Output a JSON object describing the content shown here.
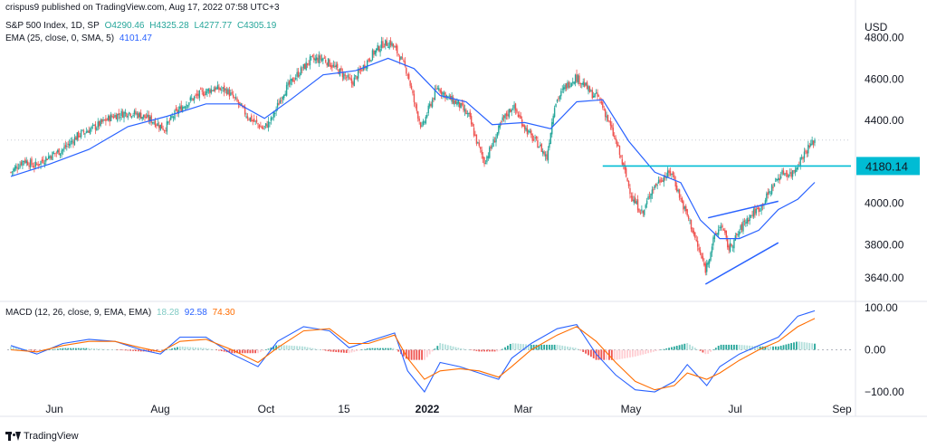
{
  "header": {
    "publisher": "crispus9 published on TradingView.com, Aug 17, 2022 07:58 UTC+3"
  },
  "legend": {
    "symbol": "S&P 500 Index, 1D, SP",
    "ohlc": {
      "o": "O4290.46",
      "h": "H4325.28",
      "l": "L4277.77",
      "c": "C4305.19"
    },
    "ema_label": "EMA (25, close, 0, SMA, 5)",
    "ema_value": "4101.47",
    "macd_label": "MACD (12, 26, close, 9, EMA, EMA)",
    "macd_hist": "18.28",
    "macd_line": "92.58",
    "macd_signal": "74.30"
  },
  "branding": {
    "text": "TradingView"
  },
  "colors": {
    "up": "#26a69a",
    "down": "#ef5350",
    "ema": "#2962ff",
    "macd": "#2962ff",
    "signal": "#ff6d00",
    "hline": "#00bcd4",
    "trend": "#2962ff",
    "last_price": "#d6d6d6"
  },
  "chart_data": {
    "type": "candlestick",
    "currency": "USD",
    "ylim": [
      3540,
      4920
    ],
    "yticks": [
      "4800.00",
      "4600.00",
      "4400.00",
      "4000.00",
      "3800.00",
      "3640.00"
    ],
    "ytick_values": [
      4800,
      4600,
      4400,
      4000,
      3800,
      3640
    ],
    "xticks": [
      "Jun",
      "Aug",
      "Oct",
      "15",
      "2022",
      "Mar",
      "May",
      "Jul",
      "Sep"
    ],
    "horizontal_level": {
      "label": "4180.14",
      "value": 4180.14
    },
    "last_price": 4305.19,
    "price_path": [
      [
        0,
        4150
      ],
      [
        10,
        4210
      ],
      [
        18,
        4180
      ],
      [
        30,
        4230
      ],
      [
        40,
        4260
      ],
      [
        52,
        4330
      ],
      [
        65,
        4370
      ],
      [
        78,
        4420
      ],
      [
        90,
        4440
      ],
      [
        100,
        4425
      ],
      [
        110,
        4395
      ],
      [
        118,
        4360
      ],
      [
        126,
        4430
      ],
      [
        136,
        4490
      ],
      [
        146,
        4530
      ],
      [
        156,
        4555
      ],
      [
        166,
        4545
      ],
      [
        175,
        4480
      ],
      [
        182,
        4420
      ],
      [
        188,
        4390
      ],
      [
        194,
        4360
      ],
      [
        200,
        4400
      ],
      [
        210,
        4540
      ],
      [
        220,
        4620
      ],
      [
        230,
        4690
      ],
      [
        240,
        4700
      ],
      [
        248,
        4660
      ],
      [
        256,
        4620
      ],
      [
        262,
        4580
      ],
      [
        270,
        4650
      ],
      [
        278,
        4720
      ],
      [
        286,
        4770
      ],
      [
        292,
        4775
      ],
      [
        298,
        4720
      ],
      [
        305,
        4630
      ],
      [
        310,
        4490
      ],
      [
        316,
        4360
      ],
      [
        322,
        4470
      ],
      [
        328,
        4560
      ],
      [
        336,
        4510
      ],
      [
        344,
        4480
      ],
      [
        352,
        4420
      ],
      [
        358,
        4300
      ],
      [
        364,
        4200
      ],
      [
        370,
        4280
      ],
      [
        378,
        4400
      ],
      [
        386,
        4470
      ],
      [
        394,
        4380
      ],
      [
        400,
        4320
      ],
      [
        406,
        4280
      ],
      [
        412,
        4220
      ],
      [
        418,
        4480
      ],
      [
        426,
        4560
      ],
      [
        434,
        4610
      ],
      [
        440,
        4580
      ],
      [
        446,
        4530
      ],
      [
        452,
        4510
      ],
      [
        458,
        4420
      ],
      [
        466,
        4280
      ],
      [
        472,
        4150
      ],
      [
        478,
        4020
      ],
      [
        486,
        3950
      ],
      [
        492,
        4060
      ],
      [
        500,
        4120
      ],
      [
        508,
        4150
      ],
      [
        516,
        4000
      ],
      [
        522,
        3910
      ],
      [
        528,
        3790
      ],
      [
        534,
        3680
      ],
      [
        540,
        3820
      ],
      [
        546,
        3900
      ],
      [
        552,
        3780
      ],
      [
        558,
        3840
      ],
      [
        564,
        3910
      ],
      [
        570,
        3950
      ],
      [
        576,
        3980
      ],
      [
        582,
        4040
      ],
      [
        588,
        4110
      ],
      [
        594,
        4150
      ],
      [
        600,
        4140
      ],
      [
        606,
        4200
      ],
      [
        612,
        4260
      ],
      [
        618,
        4305
      ]
    ],
    "candle_count": 619,
    "ema_path": [
      [
        0,
        4130
      ],
      [
        30,
        4190
      ],
      [
        60,
        4260
      ],
      [
        90,
        4370
      ],
      [
        120,
        4420
      ],
      [
        150,
        4480
      ],
      [
        175,
        4480
      ],
      [
        195,
        4410
      ],
      [
        215,
        4500
      ],
      [
        240,
        4620
      ],
      [
        265,
        4640
      ],
      [
        290,
        4700
      ],
      [
        310,
        4650
      ],
      [
        330,
        4520
      ],
      [
        350,
        4490
      ],
      [
        370,
        4380
      ],
      [
        395,
        4390
      ],
      [
        415,
        4360
      ],
      [
        435,
        4490
      ],
      [
        455,
        4500
      ],
      [
        475,
        4300
      ],
      [
        495,
        4150
      ],
      [
        515,
        4100
      ],
      [
        530,
        3920
      ],
      [
        545,
        3830
      ],
      [
        560,
        3830
      ],
      [
        575,
        3870
      ],
      [
        590,
        3970
      ],
      [
        605,
        4020
      ],
      [
        618,
        4101
      ]
    ],
    "trendlines": [
      {
        "from": [
          536,
          3930
        ],
        "to": [
          590,
          4010
        ]
      },
      {
        "from": [
          534,
          3610
        ],
        "to": [
          590,
          3810
        ]
      }
    ],
    "macd": {
      "ylim": [
        -115,
        115
      ],
      "yticks": [
        "100.00",
        "0.00",
        "−100.00"
      ],
      "ytick_values": [
        100,
        0,
        -100
      ],
      "line_path": [
        [
          0,
          10
        ],
        [
          20,
          -10
        ],
        [
          40,
          15
        ],
        [
          60,
          25
        ],
        [
          80,
          20
        ],
        [
          100,
          0
        ],
        [
          115,
          -10
        ],
        [
          130,
          30
        ],
        [
          150,
          30
        ],
        [
          170,
          -10
        ],
        [
          190,
          -40
        ],
        [
          205,
          20
        ],
        [
          225,
          55
        ],
        [
          245,
          45
        ],
        [
          260,
          5
        ],
        [
          275,
          20
        ],
        [
          295,
          40
        ],
        [
          305,
          -50
        ],
        [
          318,
          -100
        ],
        [
          330,
          -30
        ],
        [
          345,
          -40
        ],
        [
          360,
          -55
        ],
        [
          375,
          -70
        ],
        [
          385,
          -20
        ],
        [
          400,
          15
        ],
        [
          420,
          50
        ],
        [
          435,
          60
        ],
        [
          450,
          -10
        ],
        [
          465,
          -60
        ],
        [
          480,
          -95
        ],
        [
          495,
          -100
        ],
        [
          510,
          -75
        ],
        [
          520,
          -35
        ],
        [
          535,
          -85
        ],
        [
          545,
          -40
        ],
        [
          560,
          -10
        ],
        [
          575,
          10
        ],
        [
          590,
          30
        ],
        [
          605,
          80
        ],
        [
          618,
          92.58
        ]
      ],
      "signal_path": [
        [
          0,
          0
        ],
        [
          20,
          -5
        ],
        [
          40,
          10
        ],
        [
          60,
          20
        ],
        [
          80,
          20
        ],
        [
          100,
          5
        ],
        [
          115,
          -5
        ],
        [
          130,
          20
        ],
        [
          150,
          25
        ],
        [
          170,
          0
        ],
        [
          190,
          -30
        ],
        [
          205,
          5
        ],
        [
          225,
          45
        ],
        [
          245,
          50
        ],
        [
          260,
          15
        ],
        [
          275,
          15
        ],
        [
          295,
          35
        ],
        [
          305,
          -20
        ],
        [
          318,
          -70
        ],
        [
          330,
          -50
        ],
        [
          345,
          -45
        ],
        [
          360,
          -50
        ],
        [
          375,
          -65
        ],
        [
          385,
          -40
        ],
        [
          400,
          0
        ],
        [
          420,
          35
        ],
        [
          435,
          55
        ],
        [
          450,
          20
        ],
        [
          465,
          -30
        ],
        [
          480,
          -75
        ],
        [
          495,
          -95
        ],
        [
          510,
          -85
        ],
        [
          520,
          -55
        ],
        [
          535,
          -70
        ],
        [
          545,
          -55
        ],
        [
          560,
          -25
        ],
        [
          575,
          0
        ],
        [
          590,
          20
        ],
        [
          605,
          55
        ],
        [
          618,
          74.3
        ]
      ]
    }
  }
}
